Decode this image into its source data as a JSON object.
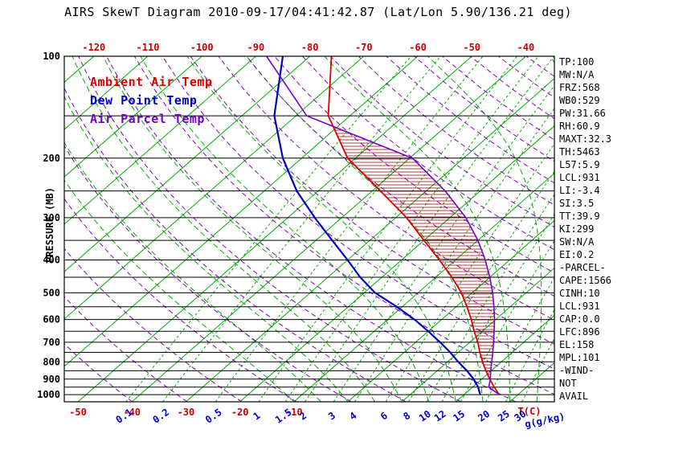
{
  "title": "AIRS SkewT Diagram 2010-09-17/04:41:42.87 (Lat/Lon 5.90/136.21 deg)",
  "axes": {
    "pressure_label": "PRESSURE (MB)",
    "pressure_ticks_mb": [
      100,
      200,
      300,
      400,
      500,
      600,
      700,
      800,
      900,
      1000
    ],
    "pressure_gridlines_mb": [
      100,
      150,
      200,
      250,
      300,
      350,
      400,
      450,
      500,
      550,
      600,
      650,
      700,
      750,
      800,
      850,
      900,
      950,
      1000
    ],
    "top_temp_ticks_c": [
      -120,
      -110,
      -100,
      -90,
      -80,
      -70,
      -60,
      -50,
      -40
    ],
    "bottom_temp_ticks_c": [
      -50,
      -40,
      -30,
      -20,
      -10
    ],
    "temp_unit_label": "T(C)",
    "mixing_ratio_ticks_gkg": [
      0.1,
      0.2,
      0.5,
      1,
      1.5,
      2,
      3,
      4,
      6,
      8,
      10,
      12,
      15,
      20,
      25,
      30
    ],
    "mixing_ratio_unit_label": "g(g/kg)"
  },
  "legend": [
    {
      "label": "Ambient Air Temp",
      "color": "#dd0000"
    },
    {
      "label": "Dew Point Temp",
      "color": "#0000cc"
    },
    {
      "label": "Air Parcel Temp",
      "color": "#7700cc"
    }
  ],
  "stats_panel": [
    "TP:100",
    "MW:N/A",
    "FRZ:568",
    "WB0:529",
    "PW:31.66",
    "RH:60.9",
    "MAXT:32.3",
    "TH:5463",
    "L57:5.9",
    "LCL:931",
    "LI:-3.4",
    "SI:3.5",
    "TT:39.9",
    "KI:299",
    "SW:N/A",
    "EI:0.2",
    "-PARCEL-",
    "CAPE:1566",
    "CINH:10",
    "LCL:931",
    "CAP:0.0",
    "LFC:896",
    "EL:158",
    "MPL:101",
    "-WIND-",
    "NOT",
    "AVAIL"
  ],
  "colors": {
    "isotherm": "#00ad00",
    "mixing_ratio": "#00ad00",
    "moist_adiabat": "#00ad00",
    "dry_adiabat": "#8a00c4",
    "pressure_grid": "#000000",
    "frame": "#000000",
    "hatch": "#8b0000",
    "tick_red": "#cc0000",
    "tick_blue": "#0000cc"
  },
  "chart_data": {
    "type": "line",
    "title": "AIRS SkewT Diagram 2010-09-17/04:41:42.87 (Lat/Lon 5.90/136.21 deg)",
    "ylabel": "PRESSURE (MB)",
    "xlabel": "T(C)",
    "x2label": "g(g/kg)",
    "y_scale": "log",
    "y_range_mb": [
      100,
      1050
    ],
    "grid": "skew-t log-p",
    "legend_position": "top-left-inside",
    "isotherm_range_c": [
      -160,
      60
    ],
    "isotherm_step_c": 10,
    "dry_adiabat_range_k": [
      230,
      460
    ],
    "dry_adiabat_step_k": 10,
    "moist_adiabat_surface_temps_c": [
      -10,
      -5,
      0,
      5,
      10,
      15,
      20,
      25,
      30,
      35,
      40
    ],
    "mixing_ratio_lines_gkg": [
      0.1,
      0.2,
      0.5,
      1,
      1.5,
      2,
      3,
      4,
      6,
      8,
      10,
      12,
      15,
      20,
      25,
      30
    ],
    "series": [
      {
        "name": "Ambient Air Temp",
        "pressure_mb": [
          1000,
          950,
          900,
          850,
          800,
          750,
          700,
          650,
          600,
          550,
          500,
          450,
          400,
          350,
          300,
          250,
          200,
          150,
          100
        ],
        "temp_c": [
          26.5,
          24,
          21.5,
          19,
          16.5,
          14,
          11.5,
          8.5,
          5.5,
          2,
          -2,
          -7,
          -13,
          -20,
          -28,
          -38.5,
          -51.5,
          -64,
          -76
        ]
      },
      {
        "name": "Dew Point Temp",
        "pressure_mb": [
          1000,
          950,
          900,
          850,
          800,
          750,
          700,
          650,
          600,
          550,
          500,
          450,
          400,
          350,
          300,
          250,
          200,
          150,
          100
        ],
        "temp_c": [
          23,
          21,
          18.5,
          15.5,
          12,
          8.5,
          4.5,
          0,
          -5,
          -11,
          -18,
          -24,
          -30,
          -37,
          -45,
          -54,
          -63.5,
          -74,
          -85
        ]
      },
      {
        "name": "Air Parcel Temp",
        "pressure_mb": [
          1000,
          950,
          900,
          850,
          800,
          750,
          700,
          650,
          600,
          550,
          500,
          450,
          400,
          350,
          300,
          250,
          200,
          150,
          100
        ],
        "temp_c": [
          26.5,
          23,
          21.6,
          19.9,
          18.2,
          16.4,
          14.4,
          12.2,
          9.8,
          7,
          3.8,
          0,
          -4.5,
          -10,
          -17,
          -26.5,
          -39.5,
          -68,
          -88
        ]
      }
    ],
    "cape_hatch": {
      "between": [
        "Ambient Air Temp",
        "Air Parcel Temp"
      ],
      "from_mb": 896,
      "to_mb": 158
    }
  }
}
